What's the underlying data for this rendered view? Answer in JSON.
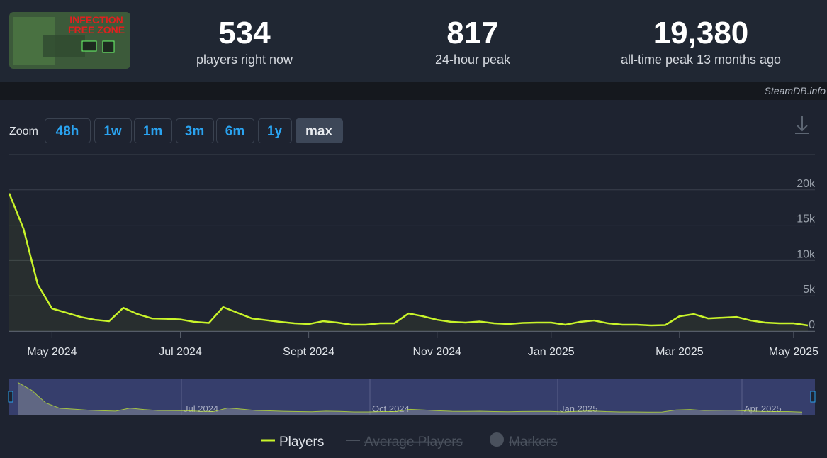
{
  "header": {
    "logo_text": [
      "INFECTION",
      "FREE ZONE"
    ],
    "stats": [
      {
        "value": "534",
        "label": "players right now"
      },
      {
        "value": "817",
        "label": "24-hour peak"
      },
      {
        "value": "19,380",
        "label": "all-time peak 13 months ago"
      }
    ]
  },
  "source": "SteamDB.info",
  "zoom": {
    "label": "Zoom",
    "buttons": [
      "48h",
      "1w",
      "1m",
      "3m",
      "6m",
      "1y",
      "max"
    ],
    "active": "max"
  },
  "chart_data": {
    "type": "line",
    "categories": [
      null,
      null,
      null,
      "May 2024",
      null,
      null,
      null,
      null,
      null,
      null,
      null,
      null,
      "Jul 2024",
      null,
      null,
      null,
      null,
      null,
      null,
      null,
      null,
      "Sept 2024",
      null,
      null,
      null,
      null,
      null,
      null,
      null,
      null,
      "Nov 2024",
      null,
      null,
      null,
      null,
      null,
      null,
      null,
      "Jan 2025",
      null,
      null,
      null,
      null,
      null,
      null,
      null,
      null,
      "Mar 2025",
      null,
      null,
      null,
      null,
      null,
      null,
      null,
      "May 2025",
      null
    ],
    "series": [
      {
        "name": "Players",
        "color": "#c9f42a",
        "values": [
          19500,
          14500,
          6600,
          3200,
          2600,
          2000,
          1600,
          1400,
          3300,
          2400,
          1800,
          1750,
          1650,
          1300,
          1150,
          3400,
          2600,
          1800,
          1550,
          1300,
          1100,
          1000,
          1400,
          1200,
          900,
          900,
          1100,
          1100,
          2500,
          2100,
          1600,
          1300,
          1200,
          1350,
          1100,
          1000,
          1150,
          1200,
          1200,
          900,
          1300,
          1500,
          1100,
          900,
          900,
          800,
          850,
          2100,
          2400,
          1800,
          1900,
          2000,
          1500,
          1200,
          1100,
          1100,
          800
        ]
      }
    ],
    "ylim": [
      0,
      25000
    ],
    "yticks": [
      0,
      {
        "value": 5000,
        "label": "5k"
      },
      {
        "value": 10000,
        "label": "10k"
      },
      {
        "value": 15000,
        "label": "15k"
      },
      {
        "value": 20000,
        "label": "20k"
      }
    ],
    "grid": true,
    "legend_disabled": [
      "Average Players",
      "Markers"
    ],
    "navigator_labels": [
      "Jul 2024",
      "Oct 2024",
      "Jan 2025",
      "Apr 2025"
    ]
  }
}
